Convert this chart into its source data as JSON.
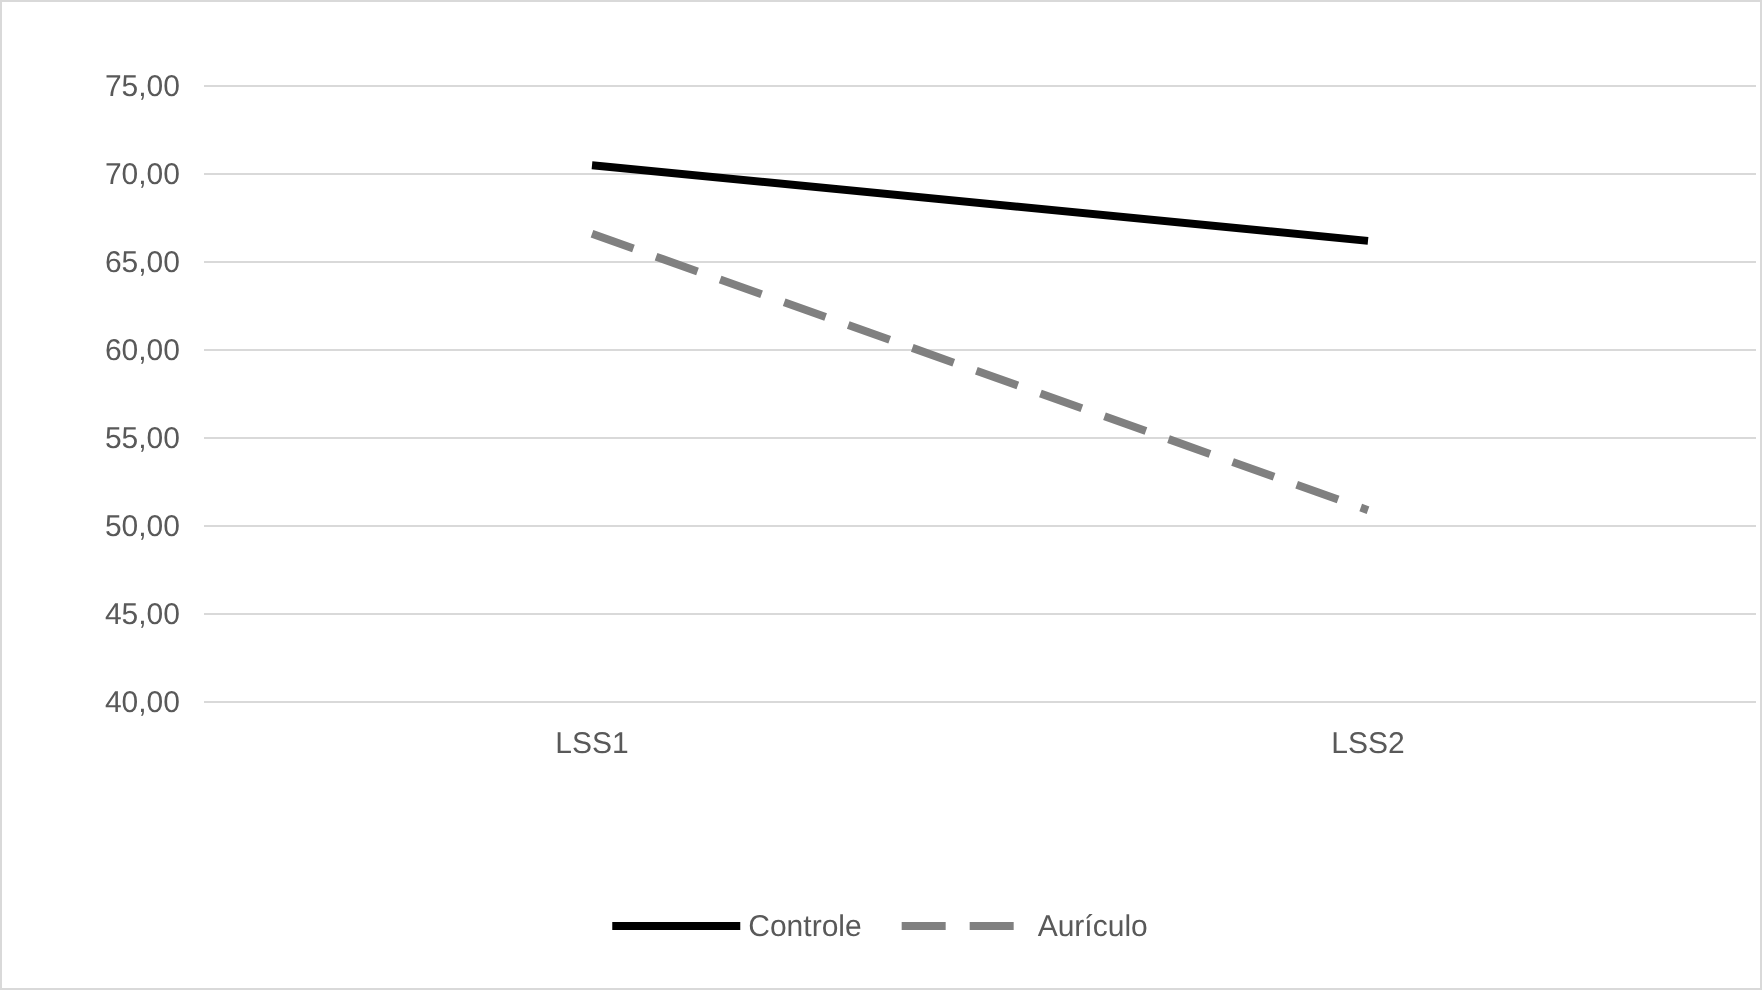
{
  "chart_data": {
    "type": "line",
    "categories": [
      "LSS1",
      "LSS2"
    ],
    "series": [
      {
        "name": "Controle",
        "color": "#000000",
        "values": [
          70.5,
          66.2
        ],
        "line_style": "solid"
      },
      {
        "name": "Aurículo",
        "color": "#808080",
        "values": [
          66.6,
          50.9
        ],
        "line_style": "dashed"
      }
    ],
    "ylim": [
      40,
      75
    ],
    "yticks": [
      {
        "value": 40,
        "label": "40,00"
      },
      {
        "value": 45,
        "label": "45,00"
      },
      {
        "value": 50,
        "label": "50,00"
      },
      {
        "value": 55,
        "label": "55,00"
      },
      {
        "value": 60,
        "label": "60,00"
      },
      {
        "value": 65,
        "label": "65,00"
      },
      {
        "value": 70,
        "label": "70,00"
      },
      {
        "value": 75,
        "label": "75,00"
      }
    ],
    "grid": "y",
    "legend": "bottom",
    "marker": "none"
  }
}
